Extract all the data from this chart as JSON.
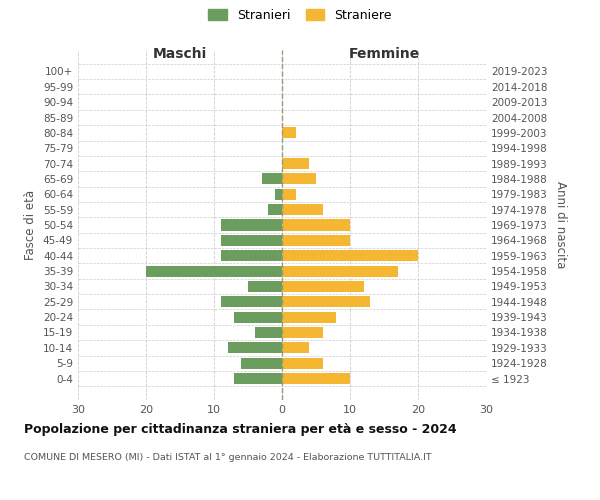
{
  "age_groups": [
    "100+",
    "95-99",
    "90-94",
    "85-89",
    "80-84",
    "75-79",
    "70-74",
    "65-69",
    "60-64",
    "55-59",
    "50-54",
    "45-49",
    "40-44",
    "35-39",
    "30-34",
    "25-29",
    "20-24",
    "15-19",
    "10-14",
    "5-9",
    "0-4"
  ],
  "birth_years": [
    "≤ 1923",
    "1924-1928",
    "1929-1933",
    "1934-1938",
    "1939-1943",
    "1944-1948",
    "1949-1953",
    "1954-1958",
    "1959-1963",
    "1964-1968",
    "1969-1973",
    "1974-1978",
    "1979-1983",
    "1984-1988",
    "1989-1993",
    "1994-1998",
    "1999-2003",
    "2004-2008",
    "2009-2013",
    "2014-2018",
    "2019-2023"
  ],
  "males": [
    0,
    0,
    0,
    0,
    0,
    0,
    0,
    3,
    1,
    2,
    9,
    9,
    9,
    20,
    5,
    9,
    7,
    4,
    8,
    6,
    7
  ],
  "females": [
    0,
    0,
    0,
    0,
    2,
    0,
    4,
    5,
    2,
    6,
    10,
    10,
    20,
    17,
    12,
    13,
    8,
    6,
    4,
    6,
    10
  ],
  "male_color": "#6b9e5e",
  "female_color": "#f5b731",
  "background_color": "#ffffff",
  "grid_color": "#cccccc",
  "title": "Popolazione per cittadinanza straniera per età e sesso - 2024",
  "subtitle": "COMUNE DI MESERO (MI) - Dati ISTAT al 1° gennaio 2024 - Elaborazione TUTTITALIA.IT",
  "legend_stranieri": "Stranieri",
  "legend_straniere": "Straniere",
  "label_maschi": "Maschi",
  "label_femmine": "Femmine",
  "ylabel_left": "Fasce di età",
  "ylabel_right": "Anni di nascita",
  "xlim": 30,
  "center_line_color": "#999977"
}
